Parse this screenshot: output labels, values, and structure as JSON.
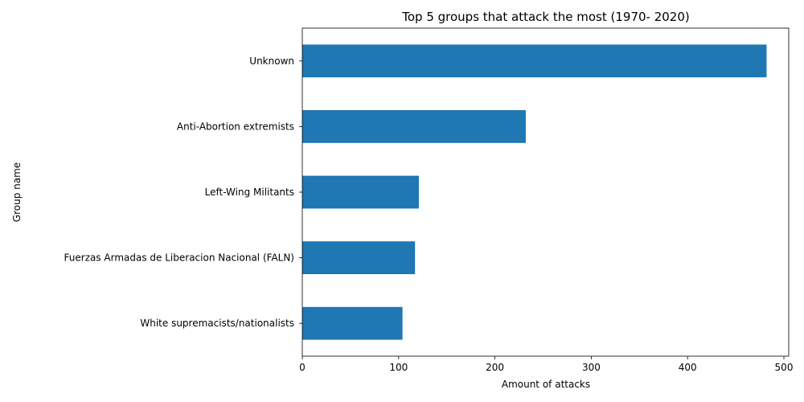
{
  "chart_data": {
    "type": "bar",
    "orientation": "horizontal",
    "title": "Top 5 groups that attack the most (1970- 2020)",
    "xlabel": "Amount of attacks",
    "ylabel": "Group name",
    "categories": [
      "White supremacists/nationalists",
      "Fuerzas Armadas de Liberacion Nacional (FALN)",
      "Left-Wing Militants",
      "Anti-Abortion extremists",
      "Unknown"
    ],
    "values": [
      104,
      117,
      121,
      232,
      482
    ],
    "xlim": [
      0,
      505
    ],
    "xticks": [
      0,
      100,
      200,
      300,
      400,
      500
    ],
    "bar_color": "#1f77b4",
    "grid": false,
    "legend": "none"
  }
}
